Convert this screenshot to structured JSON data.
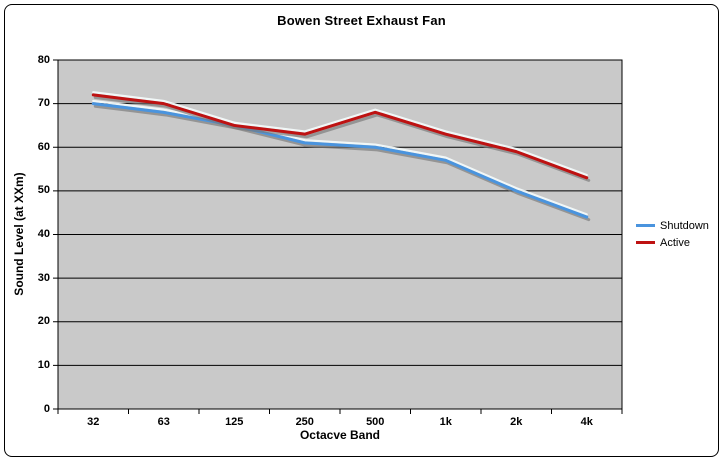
{
  "window": {
    "title": "Bowen Street Exhaust Fan"
  },
  "chart_data": {
    "type": "line",
    "title": "Bowen Street Exhaust Fan",
    "xlabel": "Octacve Band",
    "ylabel": "Sound Level (at XXm)",
    "categories": [
      "32",
      "63",
      "125",
      "250",
      "500",
      "1k",
      "2k",
      "4k"
    ],
    "series": [
      {
        "name": "Shutdown",
        "color": "#4A94DE",
        "values": [
          70,
          68,
          65,
          61,
          60,
          57,
          50,
          44
        ]
      },
      {
        "name": "Active",
        "color": "#BE1212",
        "values": [
          72,
          70,
          65,
          63,
          68,
          63,
          59,
          53
        ]
      }
    ],
    "ylim": [
      0,
      80
    ],
    "ytick_step": 10,
    "ytick_labels": [
      "0",
      "10",
      "20",
      "30",
      "40",
      "50",
      "60",
      "70",
      "80"
    ],
    "grid": "horizontal",
    "gridline_color": "#000000",
    "plot_bg": "#C9C9C9",
    "frame_color": "#000000",
    "legend_position": "right"
  }
}
